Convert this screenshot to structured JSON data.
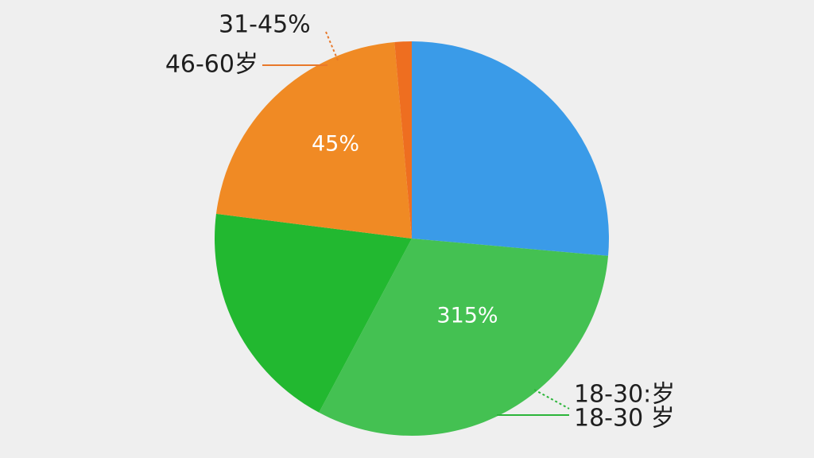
{
  "chart_data": {
    "type": "pie",
    "categories": [
      null,
      "18-30 岁",
      null,
      "46-60岁",
      "31-45%"
    ],
    "values": [
      26.4,
      31.4,
      19.2,
      21.6,
      1.4
    ],
    "colors": [
      "#3a9be8",
      "#44c152",
      "#22b830",
      "#f08a24",
      "#ee6e20"
    ],
    "annotations": [
      "45%",
      "315%",
      "18-30:岁"
    ]
  }
}
